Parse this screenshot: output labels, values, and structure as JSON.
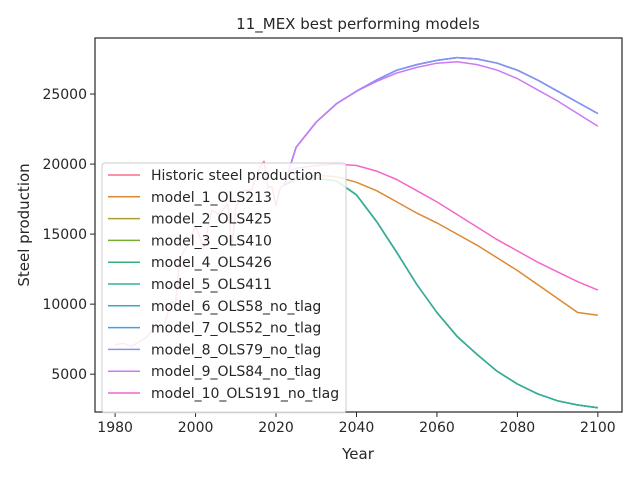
{
  "chart_data": {
    "type": "line",
    "title": "11_MEX best performing models",
    "xlabel": "Year",
    "ylabel": "Steel production",
    "xlim": [
      1975,
      2106
    ],
    "ylim": [
      2300,
      29000
    ],
    "xticks": [
      1980,
      2000,
      2020,
      2040,
      2060,
      2080,
      2100
    ],
    "yticks": [
      5000,
      10000,
      15000,
      20000,
      25000
    ],
    "grid": false,
    "legend": "center-left",
    "series": [
      {
        "name": "Historic steel production",
        "color": "#f77189",
        "x": [
          1980,
          1982,
          1984,
          1986,
          1988,
          1990,
          1992,
          1994,
          1995,
          1996,
          1998,
          2000,
          2002,
          2004,
          2006,
          2008,
          2009,
          2010,
          2012,
          2014,
          2016,
          2017,
          2018,
          2019,
          2020,
          2021,
          2022
        ],
        "y": [
          7100,
          7200,
          7000,
          7300,
          7700,
          8400,
          8300,
          10200,
          10000,
          13200,
          14200,
          15600,
          14000,
          16700,
          16400,
          17200,
          14000,
          16900,
          18100,
          18200,
          19800,
          20200,
          18300,
          18400,
          17000,
          18300,
          18500
        ]
      },
      {
        "name": "model_1_OLS213",
        "color": "#dc8932",
        "x": [
          2022,
          2025,
          2030,
          2035,
          2040,
          2045,
          2050,
          2055,
          2060,
          2065,
          2070,
          2075,
          2080,
          2085,
          2090,
          2095,
          2100
        ],
        "y": [
          18500,
          19000,
          19200,
          19100,
          18700,
          18100,
          17300,
          16500,
          15800,
          15000,
          14200,
          13300,
          12400,
          11400,
          10400,
          9400,
          9200
        ]
      },
      {
        "name": "model_2_OLS425",
        "color": "#ae9d31",
        "x": [
          2022,
          2025,
          2030,
          2035,
          2040,
          2045,
          2050,
          2055,
          2060,
          2065,
          2070,
          2075,
          2080,
          2085,
          2090,
          2095,
          2100
        ],
        "y": [
          18500,
          18900,
          19000,
          18800,
          17800,
          15900,
          13700,
          11400,
          9400,
          7700,
          6400,
          5200,
          4300,
          3600,
          3100,
          2800,
          2600
        ]
      },
      {
        "name": "model_3_OLS410",
        "color": "#77ab31",
        "x": [
          2022,
          2025,
          2030,
          2035,
          2040,
          2045,
          2050,
          2055,
          2060,
          2065,
          2070,
          2075,
          2080,
          2085,
          2090,
          2095,
          2100
        ],
        "y": [
          18500,
          18900,
          19000,
          18800,
          17800,
          15900,
          13700,
          11400,
          9400,
          7700,
          6400,
          5200,
          4300,
          3600,
          3100,
          2800,
          2600
        ]
      },
      {
        "name": "model_4_OLS426",
        "color": "#33b07a",
        "x": [
          2022,
          2025,
          2030,
          2035,
          2040,
          2045,
          2050,
          2055,
          2060,
          2065,
          2070,
          2075,
          2080,
          2085,
          2090,
          2095,
          2100
        ],
        "y": [
          18500,
          18900,
          19000,
          18800,
          17800,
          15900,
          13700,
          11400,
          9400,
          7700,
          6400,
          5200,
          4300,
          3600,
          3100,
          2800,
          2600
        ]
      },
      {
        "name": "model_5_OLS411",
        "color": "#36ada4",
        "x": [
          2022,
          2025,
          2030,
          2035,
          2040,
          2045,
          2050,
          2055,
          2060,
          2065,
          2070,
          2075,
          2080,
          2085,
          2090,
          2095,
          2100
        ],
        "y": [
          18500,
          18900,
          19000,
          18800,
          17800,
          15900,
          13700,
          11400,
          9400,
          7700,
          6400,
          5200,
          4300,
          3600,
          3100,
          2800,
          2600
        ]
      },
      {
        "name": "model_6_OLS58_no_tlag",
        "color": "#38a9c5",
        "x": [
          2022,
          2025,
          2030,
          2035,
          2040,
          2045,
          2050,
          2055,
          2060,
          2065,
          2070,
          2075,
          2080,
          2085,
          2090,
          2095,
          2100
        ],
        "y": [
          18500,
          21200,
          23000,
          24300,
          25200,
          26000,
          26700,
          27100,
          27400,
          27600,
          27500,
          27200,
          26700,
          26000,
          25200,
          24400,
          23600
        ]
      },
      {
        "name": "model_7_OLS52_no_tlag",
        "color": "#3ba3ec",
        "x": [
          2022,
          2025,
          2030,
          2035,
          2040,
          2045,
          2050,
          2055,
          2060,
          2065,
          2070,
          2075,
          2080,
          2085,
          2090,
          2095,
          2100
        ],
        "y": [
          18500,
          21200,
          23000,
          24300,
          25200,
          26000,
          26700,
          27100,
          27400,
          27600,
          27500,
          27200,
          26700,
          26000,
          25200,
          24400,
          23600
        ]
      },
      {
        "name": "model_8_OLS79_no_tlag",
        "color": "#8e8ff1",
        "x": [
          2022,
          2025,
          2030,
          2035,
          2040,
          2045,
          2050,
          2055,
          2060,
          2065,
          2070,
          2075,
          2080,
          2085,
          2090,
          2095,
          2100
        ],
        "y": [
          18500,
          21200,
          23000,
          24300,
          25200,
          26000,
          26700,
          27100,
          27400,
          27600,
          27500,
          27200,
          26700,
          26000,
          25200,
          24400,
          23600
        ]
      },
      {
        "name": "model_9_OLS84_no_tlag",
        "color": "#cc7af4",
        "x": [
          2022,
          2025,
          2030,
          2035,
          2040,
          2045,
          2050,
          2055,
          2060,
          2065,
          2070,
          2075,
          2080,
          2085,
          2090,
          2095,
          2100
        ],
        "y": [
          18500,
          21200,
          23000,
          24300,
          25200,
          25900,
          26500,
          26900,
          27200,
          27300,
          27100,
          26700,
          26100,
          25300,
          24500,
          23600,
          22700
        ]
      },
      {
        "name": "model_10_OLS191_no_tlag",
        "color": "#f565cc",
        "x": [
          2022,
          2025,
          2030,
          2035,
          2040,
          2045,
          2050,
          2055,
          2060,
          2065,
          2070,
          2075,
          2080,
          2085,
          2090,
          2095,
          2100
        ],
        "y": [
          19300,
          19700,
          19900,
          20000,
          19900,
          19500,
          18900,
          18100,
          17300,
          16400,
          15500,
          14600,
          13800,
          13000,
          12300,
          11600,
          11000
        ]
      }
    ]
  }
}
